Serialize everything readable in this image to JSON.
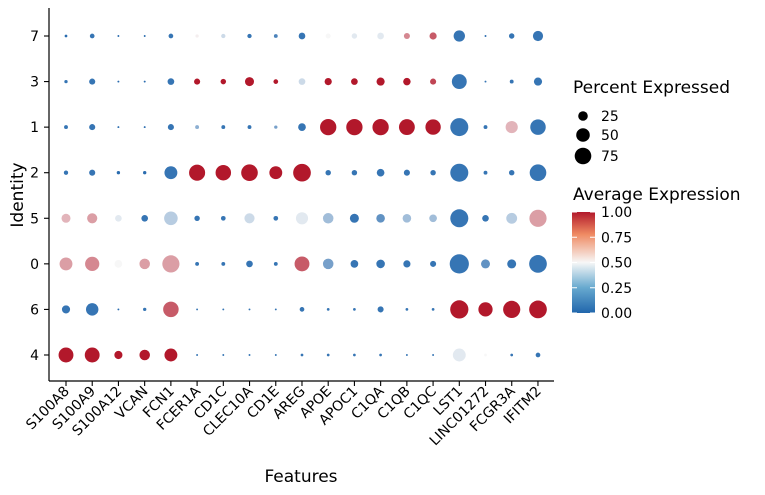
{
  "chart_data": {
    "type": "dotplot",
    "xlabel": "Features",
    "ylabel": "Identity",
    "features": [
      "S100A8",
      "S100A9",
      "S100A12",
      "VCAN",
      "FCN1",
      "FCER1A",
      "CD1C",
      "CLEC10A",
      "CD1E",
      "AREG",
      "APOE",
      "APOC1",
      "C1QA",
      "C1QB",
      "C1QC",
      "LST1",
      "LINC01272",
      "FCGR3A",
      "IFITM2"
    ],
    "identities": [
      "7",
      "3",
      "1",
      "2",
      "5",
      "0",
      "6",
      "4"
    ],
    "rows": [
      {
        "identity": "7",
        "pct": [
          2,
          6,
          1,
          1,
          6,
          3,
          5,
          5,
          4,
          12,
          7,
          8,
          12,
          10,
          14,
          35,
          1,
          8,
          28
        ],
        "avg": [
          0.02,
          0.05,
          0.02,
          0.02,
          0.05,
          0.52,
          0.4,
          0.05,
          0.1,
          0.05,
          0.5,
          0.45,
          0.45,
          0.75,
          0.85,
          0.05,
          0.02,
          0.05,
          0.05
        ]
      },
      {
        "identity": "3",
        "pct": [
          3,
          10,
          1,
          1,
          12,
          10,
          8,
          22,
          6,
          12,
          14,
          12,
          18,
          15,
          10,
          60,
          1,
          4,
          18
        ],
        "avg": [
          0.05,
          0.05,
          0.02,
          0.02,
          0.05,
          1.0,
          1.0,
          1.0,
          1.0,
          0.4,
          1.0,
          1.0,
          1.0,
          1.0,
          0.9,
          0.05,
          0.05,
          0.05,
          0.05
        ]
      },
      {
        "identity": "1",
        "pct": [
          4,
          10,
          1,
          1,
          10,
          4,
          4,
          4,
          3,
          16,
          72,
          72,
          72,
          68,
          64,
          88,
          4,
          40,
          65
        ],
        "avg": [
          0.05,
          0.05,
          0.02,
          0.02,
          0.05,
          0.25,
          0.05,
          0.05,
          0.2,
          0.05,
          1.0,
          1.0,
          1.0,
          1.0,
          1.0,
          0.05,
          0.05,
          0.65,
          0.05
        ]
      },
      {
        "identity": "2",
        "pct": [
          5,
          10,
          3,
          3,
          45,
          70,
          65,
          75,
          45,
          85,
          8,
          8,
          16,
          10,
          8,
          88,
          4,
          8,
          75
        ],
        "avg": [
          0.05,
          0.05,
          0.02,
          0.02,
          0.05,
          1.0,
          1.0,
          1.0,
          1.0,
          1.0,
          0.05,
          0.05,
          0.05,
          0.05,
          0.05,
          0.05,
          0.05,
          0.05,
          0.05
        ]
      },
      {
        "identity": "5",
        "pct": [
          22,
          28,
          12,
          12,
          50,
          8,
          6,
          28,
          6,
          40,
          30,
          22,
          20,
          20,
          16,
          88,
          12,
          32,
          80
        ],
        "avg": [
          0.65,
          0.7,
          0.45,
          0.05,
          0.35,
          0.05,
          0.05,
          0.4,
          0.05,
          0.45,
          0.3,
          0.05,
          0.15,
          0.3,
          0.3,
          0.05,
          0.05,
          0.35,
          0.7
        ]
      },
      {
        "identity": "0",
        "pct": [
          45,
          55,
          16,
          30,
          80,
          4,
          4,
          12,
          4,
          60,
          30,
          16,
          20,
          14,
          10,
          100,
          22,
          22,
          85
        ],
        "avg": [
          0.7,
          0.75,
          0.5,
          0.7,
          0.7,
          0.05,
          0.05,
          0.05,
          0.05,
          0.85,
          0.2,
          0.05,
          0.05,
          0.05,
          0.05,
          0.05,
          0.15,
          0.05,
          0.05
        ]
      },
      {
        "identity": "6",
        "pct": [
          18,
          42,
          1,
          3,
          65,
          1,
          1,
          1,
          1,
          6,
          2,
          2,
          10,
          2,
          2,
          90,
          55,
          80,
          85
        ],
        "avg": [
          0.05,
          0.05,
          0.02,
          0.05,
          0.85,
          0.05,
          0.05,
          0.05,
          0.05,
          0.05,
          0.05,
          0.05,
          0.05,
          0.05,
          0.05,
          1.0,
          1.0,
          1.0,
          1.0
        ]
      },
      {
        "identity": "4",
        "pct": [
          60,
          60,
          18,
          30,
          45,
          1,
          1,
          1,
          1,
          2,
          2,
          2,
          2,
          1,
          1,
          45,
          2,
          2,
          6
        ],
        "avg": [
          1.0,
          1.0,
          1.0,
          1.0,
          1.0,
          0.05,
          0.05,
          0.05,
          0.05,
          0.05,
          0.05,
          0.05,
          0.05,
          0.05,
          0.05,
          0.45,
          0.5,
          0.05,
          0.05
        ]
      }
    ],
    "size_legend": {
      "title": "Percent Expressed",
      "values": [
        25,
        50,
        75
      ]
    },
    "color_legend": {
      "title": "Average Expression",
      "ticks": [
        "1.00",
        "0.75",
        "0.50",
        "0.25",
        "0.00"
      ],
      "low": "#2166ac",
      "mid": "#f7f7f7",
      "high": "#b2182b"
    }
  }
}
